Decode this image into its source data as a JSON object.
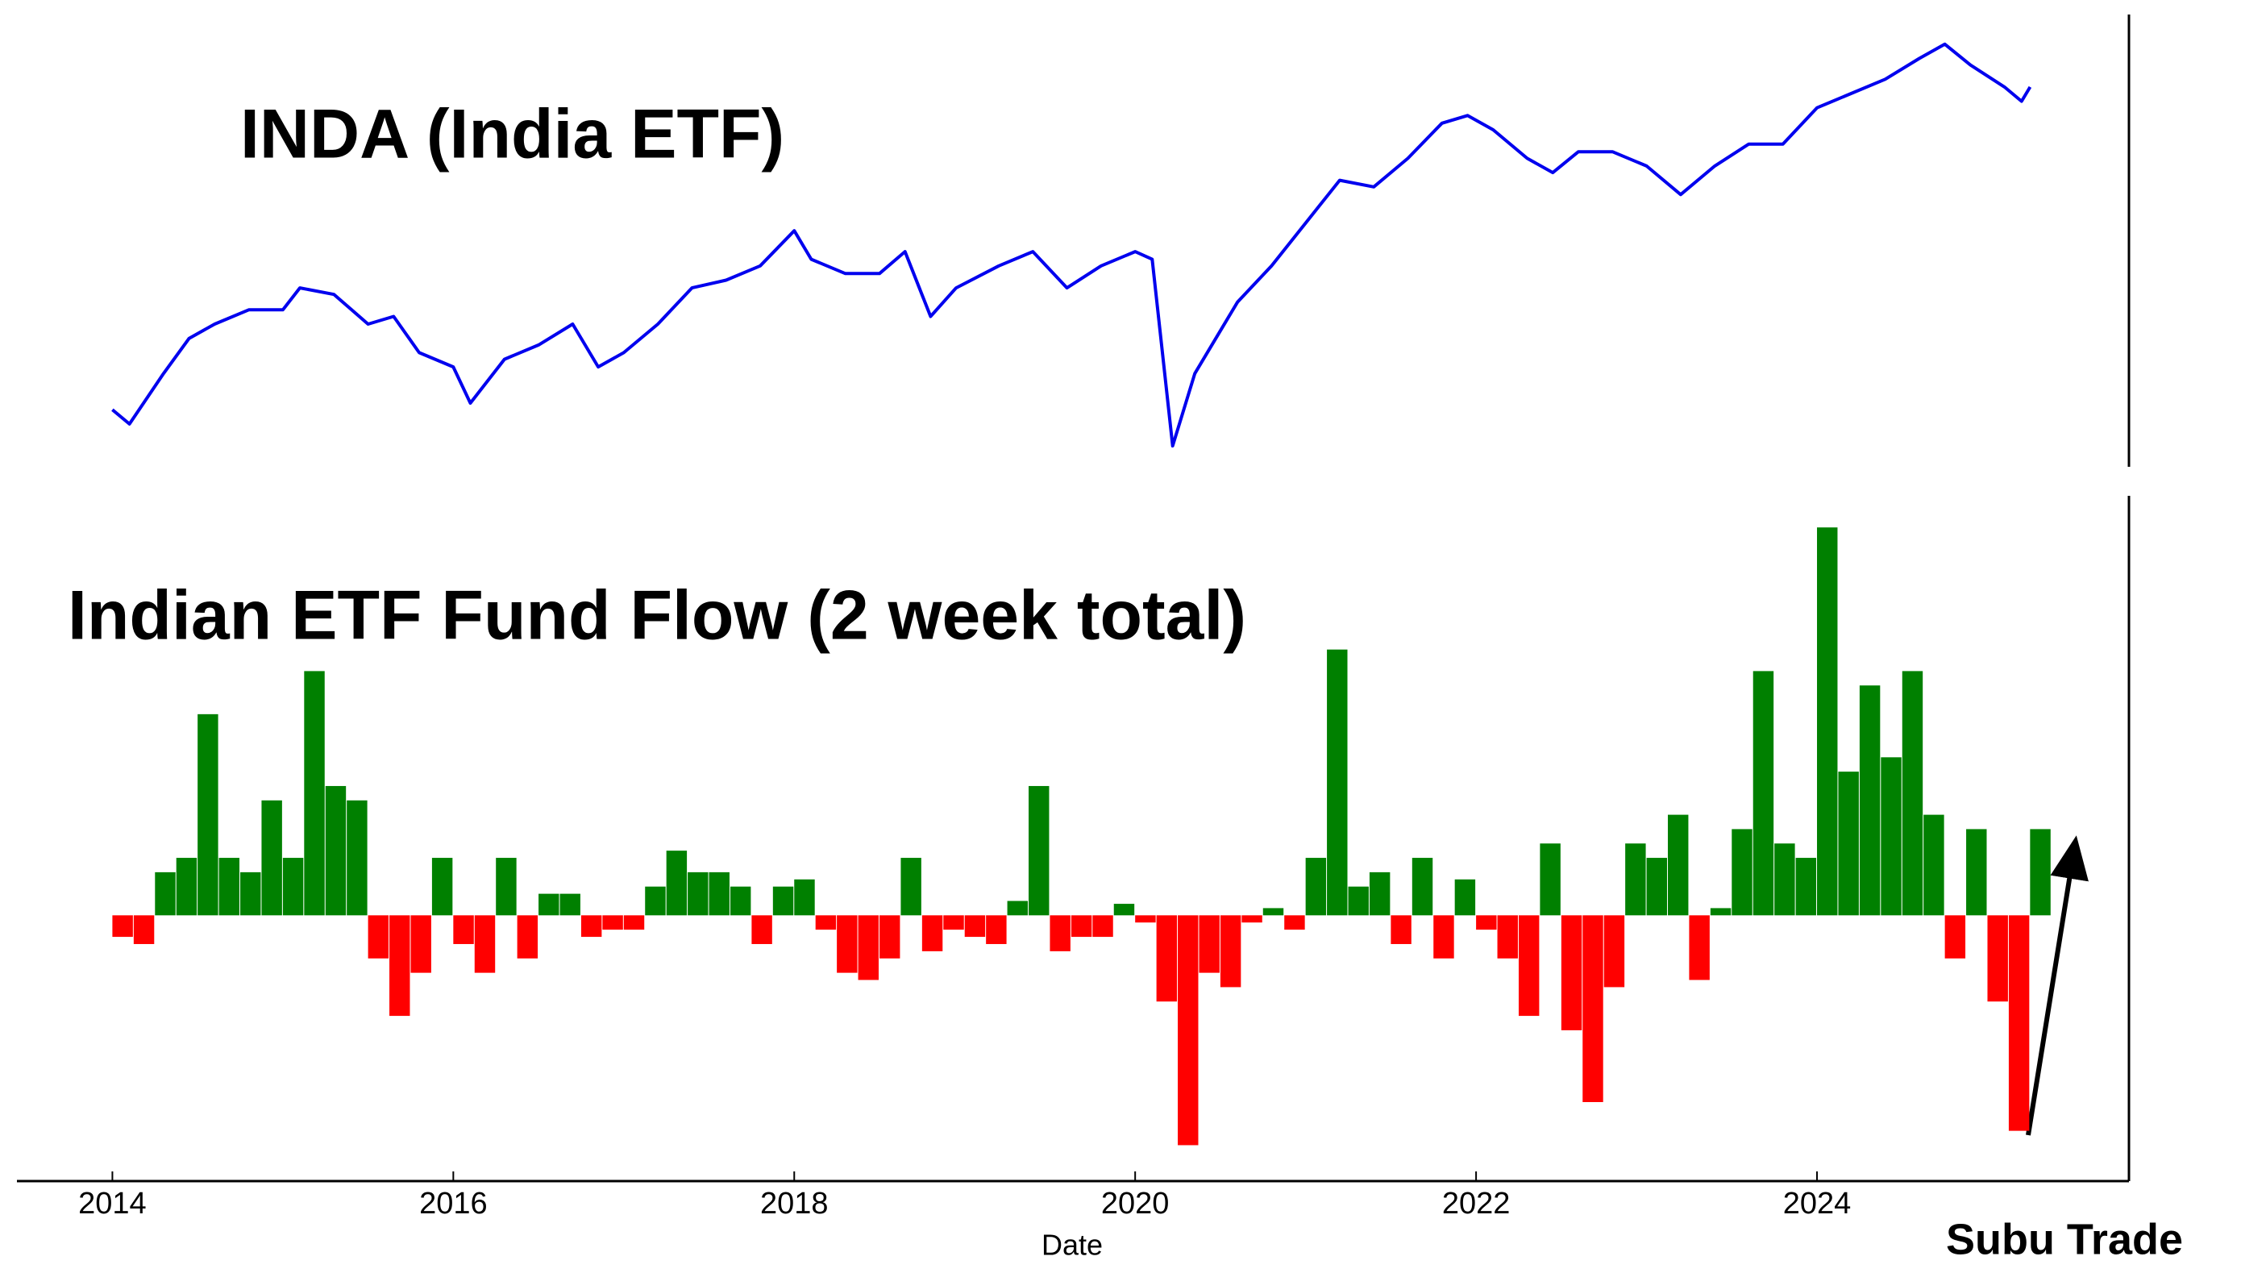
{
  "watermark": "Subu Trade",
  "chart_data": [
    {
      "type": "line",
      "title": "INDA (India ETF)",
      "color": "#0000ee",
      "x": [
        2014.0,
        2014.1,
        2014.3,
        2014.45,
        2014.6,
        2014.8,
        2015.0,
        2015.1,
        2015.3,
        2015.5,
        2015.65,
        2015.8,
        2016.0,
        2016.1,
        2016.3,
        2016.5,
        2016.7,
        2016.85,
        2017.0,
        2017.2,
        2017.4,
        2017.6,
        2017.8,
        2018.0,
        2018.1,
        2018.3,
        2018.5,
        2018.65,
        2018.8,
        2018.95,
        2019.2,
        2019.4,
        2019.6,
        2019.8,
        2020.0,
        2020.1,
        2020.22,
        2020.35,
        2020.6,
        2020.8,
        2021.0,
        2021.2,
        2021.4,
        2021.6,
        2021.8,
        2021.95,
        2022.1,
        2022.3,
        2022.45,
        2022.6,
        2022.8,
        2023.0,
        2023.2,
        2023.4,
        2023.6,
        2023.8,
        2024.0,
        2024.2,
        2024.4,
        2024.6,
        2024.75,
        2024.9,
        2025.1,
        2025.2,
        2025.25
      ],
      "values": [
        24.0,
        22.7,
        27.3,
        30.5,
        31.8,
        33.1,
        33.1,
        35.1,
        34.5,
        31.8,
        32.5,
        29.2,
        27.9,
        24.6,
        28.6,
        29.9,
        31.8,
        27.9,
        29.2,
        31.8,
        35.1,
        35.8,
        37.1,
        40.3,
        37.7,
        36.4,
        36.4,
        38.4,
        32.5,
        35.1,
        37.1,
        38.4,
        35.1,
        37.1,
        38.4,
        37.7,
        20.7,
        27.3,
        33.8,
        37.1,
        41.0,
        44.9,
        44.3,
        46.9,
        50.1,
        50.8,
        49.5,
        46.9,
        45.6,
        47.5,
        47.5,
        46.2,
        43.6,
        46.2,
        48.2,
        48.2,
        51.5,
        52.8,
        54.1,
        56.0,
        57.3,
        55.4,
        53.4,
        52.1,
        53.4
      ],
      "xlim": [
        2013.44,
        2025.83
      ],
      "ylim": [
        18.8,
        60
      ]
    },
    {
      "type": "bar",
      "title": "Indian ETF Fund Flow (2 week total)",
      "xlabel": "Date",
      "pos_color": "#008000",
      "neg_color": "#ff0000",
      "x": [
        2014.0,
        2014.125,
        2014.25,
        2014.375,
        2014.5,
        2014.625,
        2014.75,
        2014.875,
        2015.0,
        2015.125,
        2015.25,
        2015.375,
        2015.5,
        2015.625,
        2015.75,
        2015.875,
        2016.0,
        2016.125,
        2016.25,
        2016.375,
        2016.5,
        2016.625,
        2016.75,
        2016.875,
        2017.0,
        2017.125,
        2017.25,
        2017.375,
        2017.5,
        2017.625,
        2017.75,
        2017.875,
        2018.0,
        2018.125,
        2018.25,
        2018.375,
        2018.5,
        2018.625,
        2018.75,
        2018.875,
        2019.0,
        2019.125,
        2019.25,
        2019.375,
        2019.5,
        2019.625,
        2019.75,
        2019.875,
        2020.0,
        2020.125,
        2020.25,
        2020.375,
        2020.5,
        2020.625,
        2020.75,
        2020.875,
        2021.0,
        2021.125,
        2021.25,
        2021.375,
        2021.5,
        2021.625,
        2021.75,
        2021.875,
        2022.0,
        2022.125,
        2022.25,
        2022.375,
        2022.5,
        2022.625,
        2022.75,
        2022.875,
        2023.0,
        2023.125,
        2023.25,
        2023.375,
        2023.5,
        2023.625,
        2023.75,
        2023.875,
        2024.0,
        2024.125,
        2024.25,
        2024.375,
        2024.5,
        2024.625,
        2024.75,
        2024.875,
        2025.0,
        2025.125,
        2025.25
      ],
      "values": [
        -15,
        -20,
        30,
        40,
        140,
        40,
        30,
        80,
        40,
        170,
        90,
        80,
        -30,
        -70,
        -40,
        40,
        -20,
        -40,
        40,
        -30,
        15,
        15,
        -15,
        -10,
        -10,
        20,
        45,
        30,
        30,
        20,
        -20,
        20,
        25,
        -10,
        -40,
        -45,
        -30,
        40,
        -25,
        -10,
        -15,
        -20,
        10,
        90,
        -25,
        -15,
        -15,
        8,
        -5,
        -60,
        -160,
        -40,
        -50,
        -5,
        5,
        -10,
        40,
        185,
        20,
        30,
        -20,
        40,
        -30,
        25,
        -10,
        -30,
        -70,
        50,
        -80,
        -130,
        -50,
        50,
        40,
        70,
        -45,
        5,
        60,
        170,
        50,
        40,
        270,
        100,
        160,
        110,
        170,
        70,
        -30,
        60,
        -60,
        -150,
        60
      ],
      "xlim": [
        2013.44,
        2025.83
      ],
      "xticks": [
        2014,
        2016,
        2018,
        2020,
        2022,
        2024
      ],
      "ylim": [
        -185,
        292
      ]
    }
  ]
}
